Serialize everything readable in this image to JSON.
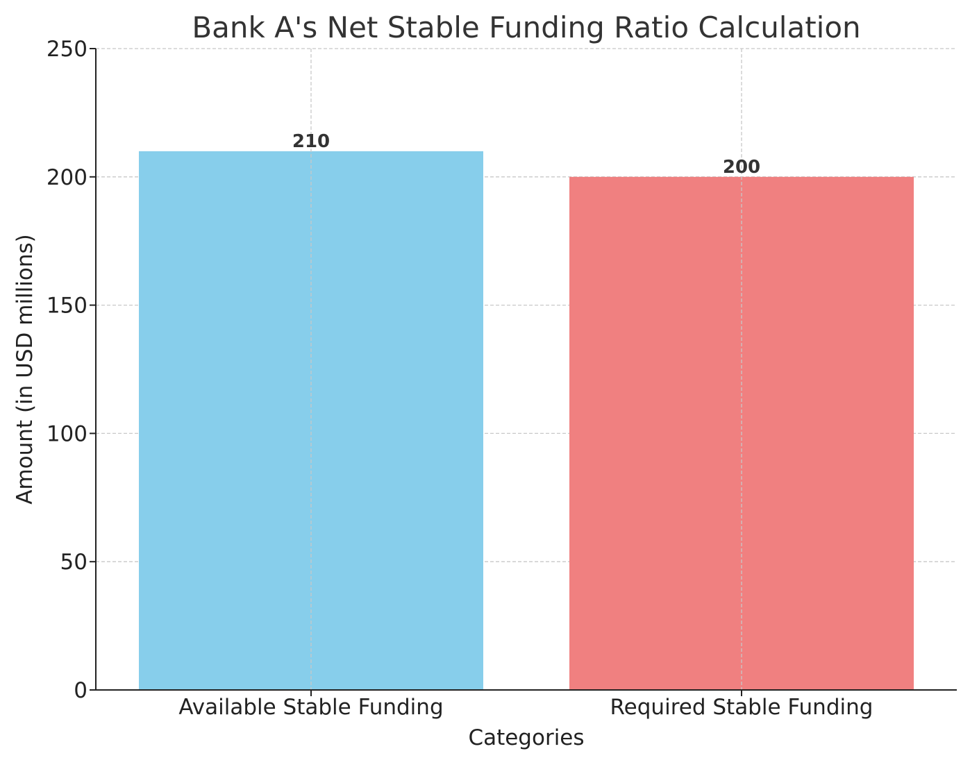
{
  "chart_data": {
    "type": "bar",
    "title": "Bank A's Net Stable Funding Ratio Calculation",
    "xlabel": "Categories",
    "ylabel": "Amount (in USD millions)",
    "categories": [
      "Available Stable Funding",
      "Required Stable Funding"
    ],
    "values": [
      210,
      200
    ],
    "data_labels": [
      "210",
      "200"
    ],
    "bar_colors": [
      "#87ceeb",
      "#f08080"
    ],
    "ylim": [
      0,
      250
    ],
    "yticks": [
      0,
      50,
      100,
      150,
      200,
      250
    ],
    "ytick_labels": [
      "0",
      "50",
      "100",
      "150",
      "200",
      "250"
    ],
    "grid": true,
    "legend": "none"
  }
}
